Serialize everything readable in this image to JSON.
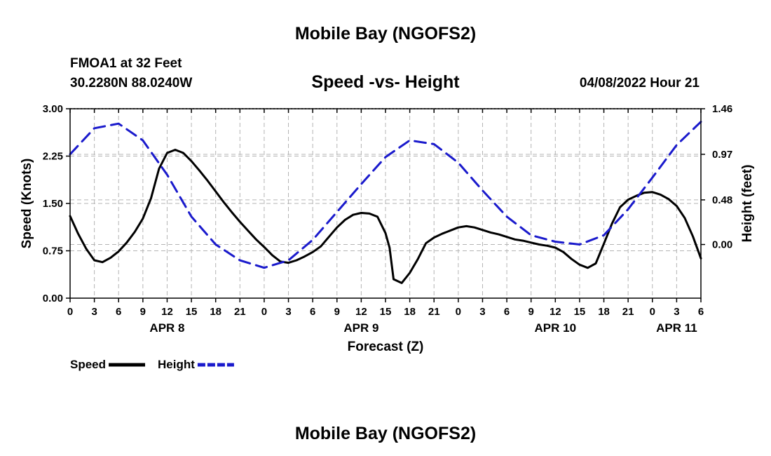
{
  "page": {
    "title_top": "Mobile Bay (NGOFS2)",
    "title_bottom": "Mobile Bay (NGOFS2)"
  },
  "chart_data": {
    "type": "line",
    "title": "Speed -vs- Height",
    "station": "FMOA1 at 32 Feet",
    "location": "30.2280N  88.0240W",
    "datetime": "04/08/2022 Hour 21",
    "xlabel": "Forecast (Z)",
    "ylabel_left": "Speed (Knots)",
    "ylabel_right": "Height (feet)",
    "x_range_hours": [
      0,
      78
    ],
    "ylim_left": [
      0,
      3.0
    ],
    "ylim_right_feet": [
      -0.577,
      1.46
    ],
    "left_ticks": [
      "0.00",
      "0.75",
      "1.50",
      "2.25",
      "3.00"
    ],
    "left_tick_values": [
      0,
      0.75,
      1.5,
      2.25,
      3.0
    ],
    "right_ticks": [
      "0.00",
      "0.48",
      "0.97",
      "1.46"
    ],
    "right_tick_values": [
      0,
      0.48,
      0.97,
      1.46
    ],
    "x_tick_labels": [
      "0",
      "3",
      "6",
      "9",
      "12",
      "15",
      "18",
      "21",
      "0",
      "3",
      "6",
      "9",
      "12",
      "15",
      "18",
      "21",
      "0",
      "3",
      "6",
      "9",
      "12",
      "15",
      "18",
      "21",
      "0",
      "3",
      "6"
    ],
    "date_labels": [
      {
        "label": "APR 8",
        "hour": 12
      },
      {
        "label": "APR 9",
        "hour": 36
      },
      {
        "label": "APR 10",
        "hour": 60
      },
      {
        "label": "APR 11",
        "hour": 75
      }
    ],
    "grid": true,
    "legend": [
      {
        "name": "Speed",
        "color": "#000000",
        "style": "solid"
      },
      {
        "name": "Height",
        "color": "#1a1acc",
        "style": "dashed"
      }
    ],
    "series": [
      {
        "name": "Speed",
        "axis": "left",
        "color": "#000000",
        "x": [
          0,
          1,
          2,
          3,
          4,
          5,
          6,
          7,
          8,
          9,
          10,
          11,
          12,
          13,
          14,
          15,
          16,
          17,
          18,
          19,
          20,
          21,
          22,
          23,
          24,
          25,
          26,
          27,
          28,
          29,
          30,
          31,
          32,
          33,
          34,
          35,
          36,
          37,
          38,
          39,
          39.5,
          40,
          41,
          42,
          43,
          44,
          45,
          46,
          47,
          48,
          49,
          50,
          51,
          52,
          53,
          54,
          55,
          56,
          57,
          58,
          59,
          60,
          61,
          62,
          63,
          64,
          65,
          66,
          67,
          68,
          69,
          70,
          71,
          72,
          73,
          74,
          75,
          76,
          77,
          78
        ],
        "values": [
          1.3,
          1.02,
          0.78,
          0.6,
          0.57,
          0.64,
          0.74,
          0.88,
          1.05,
          1.26,
          1.58,
          2.05,
          2.3,
          2.35,
          2.3,
          2.17,
          2.02,
          1.86,
          1.69,
          1.52,
          1.36,
          1.21,
          1.07,
          0.93,
          0.81,
          0.68,
          0.58,
          0.56,
          0.6,
          0.66,
          0.73,
          0.82,
          0.97,
          1.12,
          1.24,
          1.32,
          1.35,
          1.34,
          1.29,
          1.03,
          0.8,
          0.3,
          0.24,
          0.4,
          0.62,
          0.87,
          0.96,
          1.02,
          1.07,
          1.12,
          1.14,
          1.12,
          1.08,
          1.04,
          1.01,
          0.97,
          0.93,
          0.91,
          0.88,
          0.85,
          0.83,
          0.8,
          0.73,
          0.62,
          0.53,
          0.48,
          0.55,
          0.86,
          1.18,
          1.44,
          1.56,
          1.62,
          1.67,
          1.68,
          1.64,
          1.57,
          1.46,
          1.27,
          0.98,
          0.63
        ]
      },
      {
        "name": "Height",
        "axis": "right",
        "color": "#1a1acc",
        "x": [
          0,
          3,
          6,
          9,
          12,
          15,
          18,
          21,
          24,
          27,
          30,
          33,
          36,
          39,
          42,
          45,
          48,
          51,
          54,
          57,
          60,
          63,
          66,
          69,
          72,
          75,
          78
        ],
        "values": [
          0.97,
          1.25,
          1.3,
          1.12,
          0.75,
          0.3,
          0.0,
          -0.17,
          -0.25,
          -0.17,
          0.05,
          0.35,
          0.65,
          0.94,
          1.12,
          1.08,
          0.88,
          0.58,
          0.3,
          0.1,
          0.03,
          0.0,
          0.1,
          0.38,
          0.72,
          1.07,
          1.32
        ]
      }
    ]
  }
}
